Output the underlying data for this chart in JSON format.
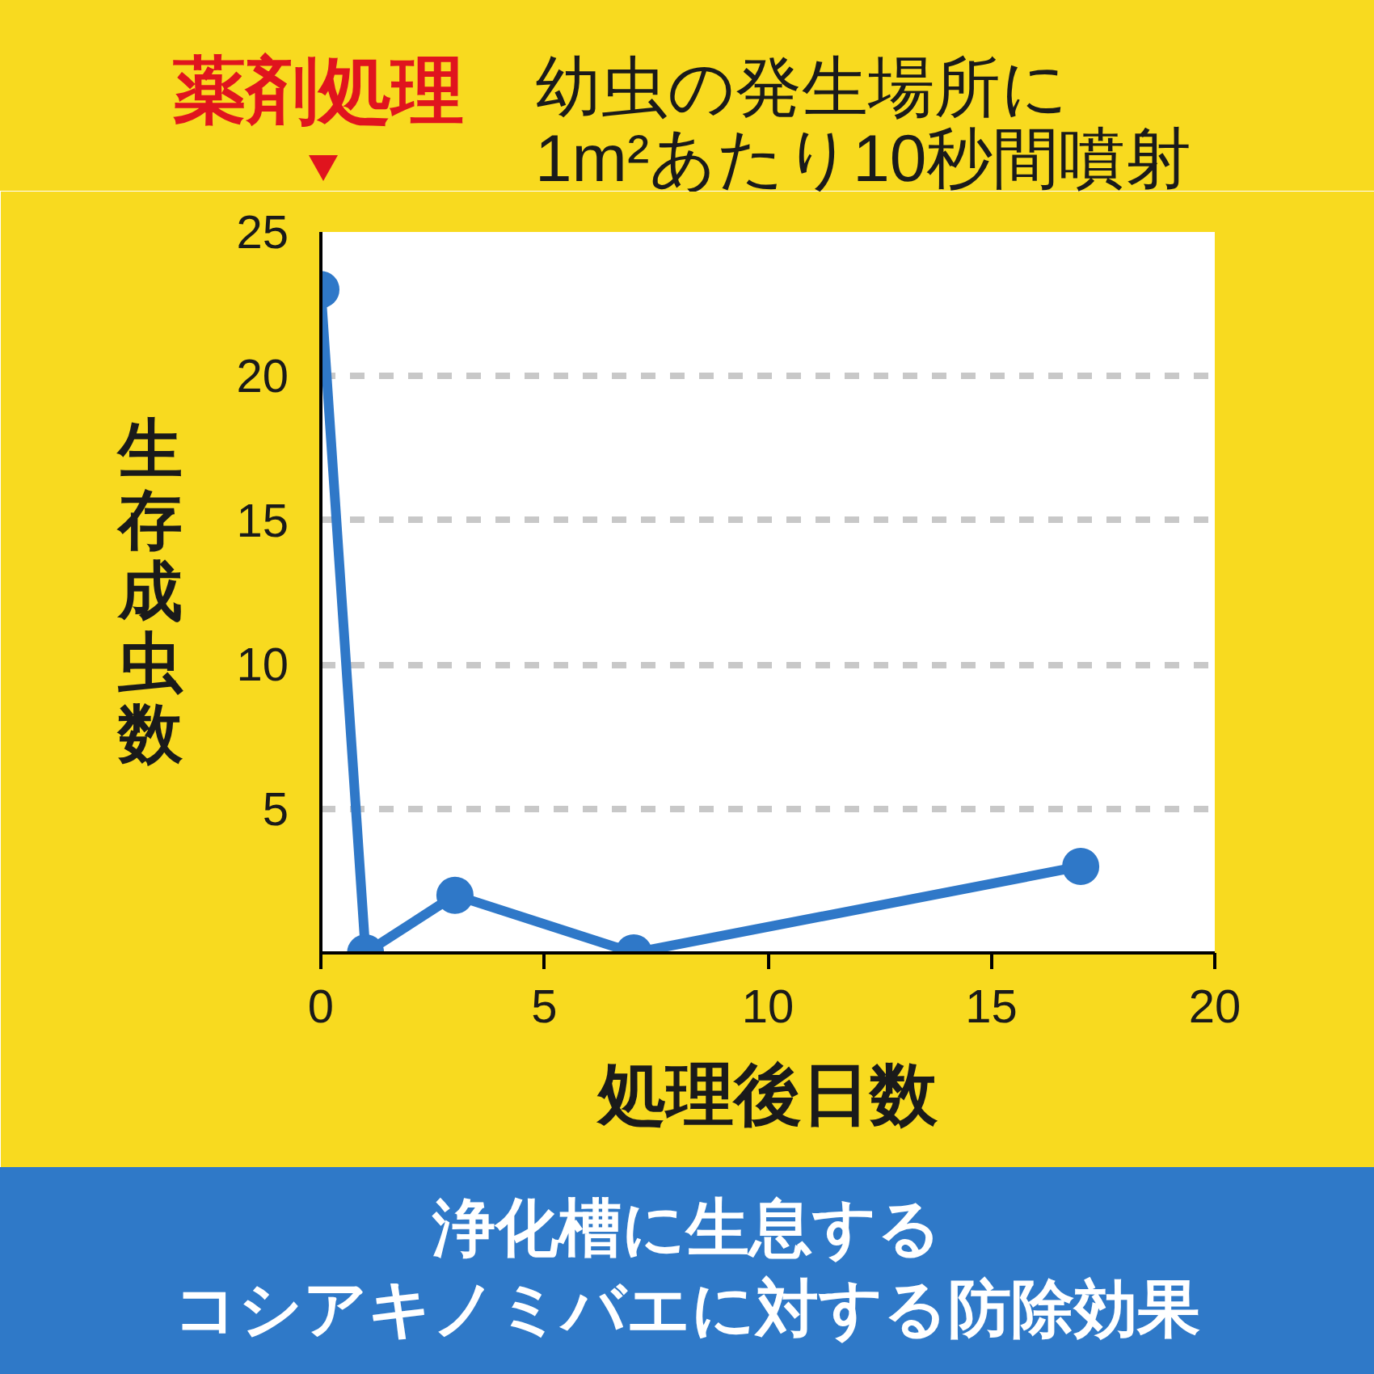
{
  "chart_data": {
    "type": "line",
    "title": "浄化槽に生息する",
    "subtitle": "コシアキノミバエに対する防除効果",
    "xlabel": "処理後日数",
    "ylabel": "生存成虫数",
    "annotations": [
      "薬剤処理",
      "幼虫の発生場所に",
      "1m²あたり10秒間噴射"
    ],
    "x": [
      0,
      1,
      3,
      7,
      17
    ],
    "series": [
      {
        "color": "#2f78c8",
        "values": [
          23,
          0,
          2,
          0,
          3
        ]
      }
    ],
    "xlim": [
      0,
      20
    ],
    "ylim": [
      0,
      25
    ],
    "xticks": [
      0,
      5,
      10,
      15,
      20
    ],
    "yticks": [
      5,
      10,
      15,
      20,
      25
    ],
    "grid": "y",
    "marker": "circle",
    "line_style": "solid"
  }
}
